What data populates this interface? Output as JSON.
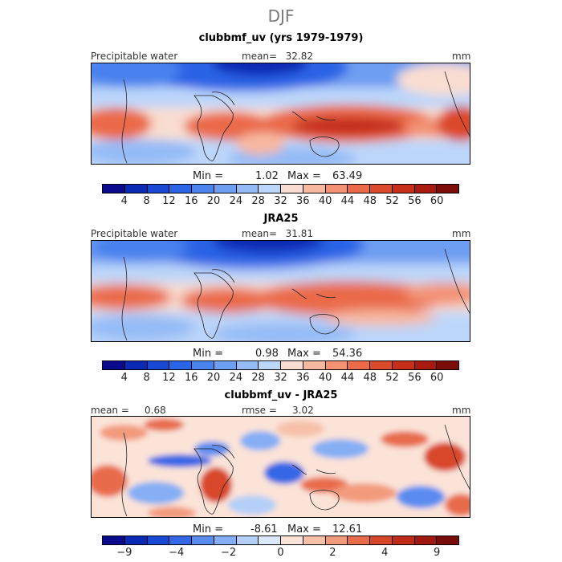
{
  "figure": {
    "title": "DJF"
  },
  "panels": [
    {
      "title": "clubbmf_uv (yrs 1979-1979)",
      "left_label": "Precipitable water",
      "mean_label": "mean=",
      "mean_value": "32.82",
      "units": "mm",
      "min_label": "Min =",
      "min_value": "1.02",
      "max_label": "Max =",
      "max_value": "63.49"
    },
    {
      "title": "JRA25",
      "left_label": "Precipitable water",
      "mean_label": "mean=",
      "mean_value": "31.81",
      "units": "mm",
      "min_label": "Min =",
      "min_value": "0.98",
      "max_label": "Max =",
      "max_value": "54.36"
    },
    {
      "title": "clubbmf_uv - JRA25",
      "left_label": "mean =",
      "mean_value": "0.68",
      "rmse_label": "rmse =",
      "rmse_value": "3.02",
      "units": "mm",
      "min_label": "Min =",
      "min_value": "-8.61",
      "max_label": "Max =",
      "max_value": "12.61"
    }
  ],
  "colorbar_abs": {
    "ticks": [
      "4",
      "8",
      "12",
      "16",
      "20",
      "24",
      "28",
      "32",
      "36",
      "40",
      "44",
      "48",
      "52",
      "56",
      "60"
    ],
    "colors": [
      "#0a0a8c",
      "#0b2ab4",
      "#1848d4",
      "#2c64e6",
      "#4a82ee",
      "#6e9ef2",
      "#95bbf6",
      "#bcd6fa",
      "#f9ddd0",
      "#f7b8a0",
      "#f39274",
      "#ea6a4a",
      "#dc4a2c",
      "#c62e1a",
      "#a81a10",
      "#7c0c08"
    ]
  },
  "colorbar_diff": {
    "ticks": [
      "−9",
      "−4",
      "−2",
      "0",
      "2",
      "4",
      "9"
    ],
    "colors": [
      "#0a0a8c",
      "#0b2ab4",
      "#1848d4",
      "#3466e6",
      "#5a8cf0",
      "#85aef4",
      "#b4cff8",
      "#dce8fc",
      "#fbe3d8",
      "#f7c0a8",
      "#f29a7c",
      "#e86c4c",
      "#d8462a",
      "#c02a18",
      "#a01810",
      "#780c08"
    ]
  }
}
